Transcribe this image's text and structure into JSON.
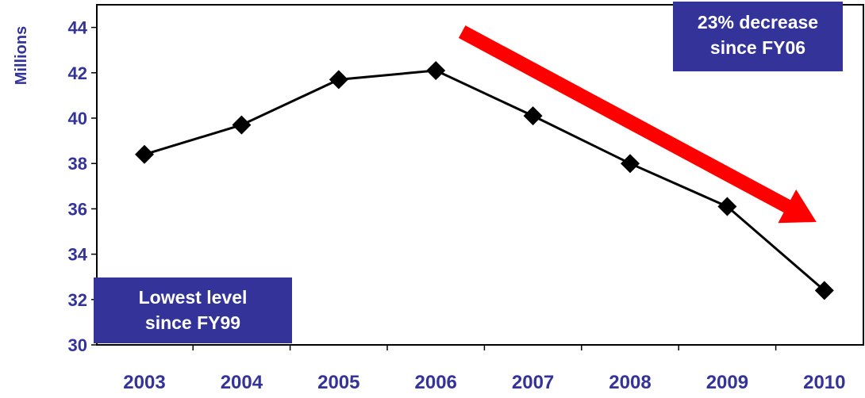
{
  "chart_data": {
    "type": "line",
    "ylabel": "Millions",
    "xlabel": "",
    "categories": [
      "2003",
      "2004",
      "2005",
      "2006",
      "2007",
      "2008",
      "2009",
      "2010"
    ],
    "series": [
      {
        "values": [
          38.4,
          39.7,
          41.7,
          42.1,
          40.1,
          38.0,
          36.1,
          32.4
        ]
      }
    ],
    "ylim": [
      30,
      45
    ],
    "yticks": [
      "30",
      "32",
      "34",
      "36",
      "38",
      "40",
      "42",
      "44"
    ],
    "grid": false,
    "line_color": "#000000",
    "marker": "diamond",
    "label_color": "#333399",
    "annotations": {
      "top_right": {
        "lines": [
          "23% decrease",
          "since FY06"
        ]
      },
      "bottom_left": {
        "lines": [
          "Lowest level",
          "since FY99"
        ]
      },
      "trend_arrow": {
        "color": "#ff0000",
        "from_category": "2006",
        "to_category": "2010"
      }
    },
    "annotation_box_color": "#333399"
  }
}
